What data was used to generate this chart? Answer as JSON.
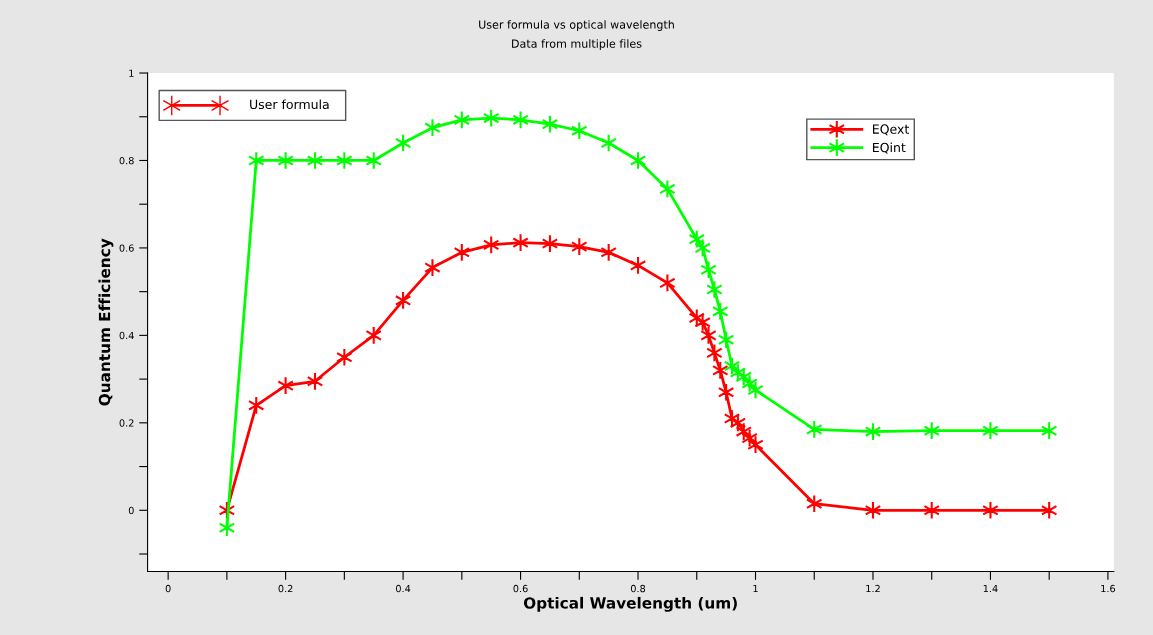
{
  "chart_data": {
    "type": "line",
    "title": "User formula vs optical wavelength",
    "subtitle": "Data from multiple files",
    "xlabel": "Optical Wavelength (um)",
    "ylabel": "Quantum Efficiency",
    "annotations": [
      "User formula"
    ],
    "marker": "cross",
    "line_style": "solid",
    "legend": "top right",
    "grid": false,
    "xlim": [
      -0.035,
      1.61
    ],
    "ylim": [
      -0.14,
      1.0
    ],
    "xticks": [
      0,
      {
        "value": 0.1,
        "label": null
      },
      0.2,
      {
        "value": 0.3,
        "label": null
      },
      0.4,
      {
        "value": 0.5,
        "label": null
      },
      0.6,
      {
        "value": 0.7,
        "label": null
      },
      0.8,
      {
        "value": 0.9,
        "label": null
      },
      1,
      {
        "value": 1.1,
        "label": null
      },
      1.2,
      {
        "value": 1.3,
        "label": null
      },
      1.4,
      {
        "value": 1.5,
        "label": null
      },
      1.6
    ],
    "yticks": [
      {
        "value": -0.1,
        "label": null
      },
      0,
      {
        "value": 0.1,
        "label": null
      },
      0.2,
      {
        "value": 0.3,
        "label": null
      },
      0.4,
      {
        "value": 0.5,
        "label": null
      },
      0.6,
      {
        "value": 0.7,
        "label": null
      },
      0.8,
      {
        "value": 0.9,
        "label": null
      },
      1
    ],
    "series": [
      {
        "name": "EQext",
        "color": "#ff0000",
        "x": [
          0.1,
          0.15,
          0.2,
          0.25,
          0.3,
          0.35,
          0.4,
          0.45,
          0.5,
          0.55,
          0.6,
          0.65,
          0.7,
          0.75,
          0.8,
          0.85,
          0.9,
          0.91,
          0.92,
          0.93,
          0.94,
          0.95,
          0.96,
          0.97,
          0.98,
          0.99,
          1.0,
          1.1,
          1.2,
          1.3,
          1.4,
          1.5
        ],
        "values": [
          0,
          0.24,
          0.285,
          0.295,
          0.35,
          0.4,
          0.48,
          0.555,
          0.59,
          0.607,
          0.612,
          0.61,
          0.603,
          0.59,
          0.56,
          0.52,
          0.44,
          0.43,
          0.4,
          0.36,
          0.32,
          0.27,
          0.21,
          0.2,
          0.18,
          0.165,
          0.15,
          0.015,
          0,
          0,
          0,
          0
        ]
      },
      {
        "name": "EQint",
        "color": "#00ff00",
        "x": [
          0.1,
          0.15,
          0.2,
          0.25,
          0.3,
          0.35,
          0.4,
          0.45,
          0.5,
          0.55,
          0.6,
          0.65,
          0.7,
          0.75,
          0.8,
          0.85,
          0.9,
          0.91,
          0.92,
          0.93,
          0.94,
          0.95,
          0.96,
          0.97,
          0.98,
          0.99,
          1.0,
          1.1,
          1.2,
          1.3,
          1.4,
          1.5
        ],
        "values": [
          -0.04,
          0.8,
          0.8,
          0.8,
          0.8,
          0.8,
          0.84,
          0.875,
          0.893,
          0.897,
          0.893,
          0.883,
          0.868,
          0.84,
          0.8,
          0.735,
          0.62,
          0.6,
          0.55,
          0.505,
          0.455,
          0.39,
          0.33,
          0.315,
          0.305,
          0.29,
          0.275,
          0.185,
          0.18,
          0.182,
          0.182,
          0.182
        ]
      }
    ]
  }
}
